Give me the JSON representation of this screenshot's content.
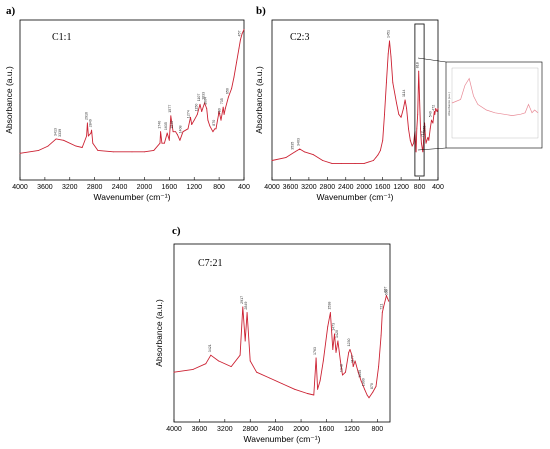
{
  "panels": [
    {
      "letter": "a)",
      "sample_label": "C1:1"
    },
    {
      "letter": "b)",
      "sample_label": "C2:3"
    },
    {
      "letter": "c)",
      "sample_label": "C7:21"
    }
  ],
  "colors": {
    "spectrum": "#cc2233",
    "inset_spectrum": "#e88a96",
    "axis": "#000000",
    "zoom_box": "#000000"
  },
  "chart_data": [
    {
      "type": "line",
      "panel": "a)",
      "title": "C1:1",
      "xlabel": "Wavenumber (cm⁻¹)",
      "ylabel": "Absorbance (a.u.)",
      "xlim": [
        4000,
        400
      ],
      "x_reversed": true,
      "ylim": [
        0,
        1
      ],
      "xticks": [
        4000,
        3600,
        3200,
        2800,
        2400,
        2000,
        1600,
        1200,
        800,
        400
      ],
      "grid": false,
      "series": [
        {
          "x": [
            4000,
            3700,
            3550,
            3420,
            3300,
            3100,
            3000,
            2930,
            2916,
            2900,
            2860,
            2849,
            2830,
            2750,
            2500,
            2200,
            2000,
            1850,
            1750,
            1740,
            1720,
            1680,
            1635,
            1620,
            1600,
            1577,
            1540,
            1500,
            1470,
            1430,
            1380,
            1300,
            1260,
            1240,
            1200,
            1150,
            1107,
            1080,
            1033,
            1000,
            980,
            950,
            900,
            870,
            850,
            800,
            770,
            735,
            720,
            700,
            650,
            600,
            560,
            520,
            480,
            457,
            430,
            400
          ],
          "y": [
            0.13,
            0.15,
            0.18,
            0.23,
            0.22,
            0.18,
            0.17,
            0.25,
            0.34,
            0.25,
            0.27,
            0.29,
            0.2,
            0.15,
            0.14,
            0.14,
            0.14,
            0.15,
            0.2,
            0.28,
            0.2,
            0.2,
            0.27,
            0.25,
            0.22,
            0.39,
            0.28,
            0.28,
            0.26,
            0.22,
            0.28,
            0.3,
            0.38,
            0.33,
            0.36,
            0.4,
            0.47,
            0.42,
            0.48,
            0.44,
            0.36,
            0.32,
            0.28,
            0.3,
            0.3,
            0.42,
            0.36,
            0.45,
            0.4,
            0.44,
            0.52,
            0.58,
            0.66,
            0.76,
            0.86,
            0.92,
            0.96,
            0.99
          ]
        }
      ],
      "peak_labels": [
        {
          "x": 3339,
          "label": "3339"
        },
        {
          "x": 3413,
          "label": "3413"
        },
        {
          "x": 2916,
          "label": "2916"
        },
        {
          "x": 2849,
          "label": "2849"
        },
        {
          "x": 1740,
          "label": "1740"
        },
        {
          "x": 1635,
          "label": "1635"
        },
        {
          "x": 1577,
          "label": "1577"
        },
        {
          "x": 1540,
          "label": "1540"
        },
        {
          "x": 1408,
          "label": "1408"
        },
        {
          "x": 1274,
          "label": "1274"
        },
        {
          "x": 1150,
          "label": "1150"
        },
        {
          "x": 1107,
          "label": "1107"
        },
        {
          "x": 1033,
          "label": "1033"
        },
        {
          "x": 1004,
          "label": "1004"
        },
        {
          "x": 870,
          "label": "870"
        },
        {
          "x": 780,
          "label": "780"
        },
        {
          "x": 735,
          "label": "735"
        },
        {
          "x": 650,
          "label": "650"
        },
        {
          "x": 457,
          "label": "457"
        }
      ]
    },
    {
      "type": "line",
      "panel": "b)",
      "title": "C2:3",
      "xlabel": "Wavenumber (cm⁻¹)",
      "ylabel": "Absorbance (a.u.)",
      "xlim": [
        4000,
        400
      ],
      "x_reversed": true,
      "ylim": [
        0,
        1
      ],
      "xticks": [
        4000,
        3600,
        3200,
        2800,
        2400,
        2000,
        1600,
        1200,
        800,
        400
      ],
      "grid": false,
      "series": [
        {
          "x": [
            4000,
            3700,
            3500,
            3400,
            3300,
            3100,
            2900,
            2700,
            2500,
            2200,
            2000,
            1900,
            1800,
            1750,
            1700,
            1650,
            1600,
            1560,
            1520,
            1480,
            1451,
            1420,
            1380,
            1300,
            1250,
            1200,
            1150,
            1114,
            1080,
            1040,
            1000,
            960,
            930,
            900,
            875,
            860,
            840,
            818,
            800,
            780,
            760,
            730,
            712,
            700,
            690,
            676,
            660,
            640,
            620,
            600,
            570,
            540,
            510,
            480,
            470,
            450,
            420,
            400
          ],
          "y": [
            0.08,
            0.1,
            0.14,
            0.16,
            0.14,
            0.12,
            0.08,
            0.06,
            0.06,
            0.06,
            0.06,
            0.07,
            0.08,
            0.1,
            0.12,
            0.15,
            0.22,
            0.4,
            0.62,
            0.82,
            0.91,
            0.8,
            0.62,
            0.48,
            0.4,
            0.38,
            0.44,
            0.5,
            0.44,
            0.3,
            0.22,
            0.18,
            0.2,
            0.28,
            0.14,
            0.3,
            0.4,
            0.7,
            0.5,
            0.3,
            0.2,
            0.14,
            0.22,
            0.3,
            0.34,
            0.26,
            0.2,
            0.22,
            0.24,
            0.22,
            0.3,
            0.36,
            0.34,
            0.42,
            0.4,
            0.44,
            0.42,
            0.44
          ]
        }
      ],
      "peak_labels": [
        {
          "x": 3535,
          "label": "3535"
        },
        {
          "x": 3403,
          "label": "3403"
        },
        {
          "x": 1451,
          "label": "1451"
        },
        {
          "x": 1114,
          "label": "1114"
        },
        {
          "x": 818,
          "label": "818"
        },
        {
          "x": 712,
          "label": "712"
        },
        {
          "x": 676,
          "label": "676"
        },
        {
          "x": 540,
          "label": "540"
        },
        {
          "x": 472,
          "label": "472"
        }
      ],
      "inset": {
        "zoom_region_x": [
          900,
          700
        ],
        "series": [
          {
            "x": [
              900,
              880,
              870,
              860,
              850,
              840,
              820,
              800,
              780,
              760,
              740,
              730,
              722,
              714,
              708,
              700
            ],
            "y": [
              0.5,
              0.55,
              0.75,
              0.85,
              0.6,
              0.48,
              0.4,
              0.36,
              0.34,
              0.32,
              0.34,
              0.36,
              0.48,
              0.36,
              0.4,
              0.36
            ]
          }
        ]
      }
    },
    {
      "type": "line",
      "panel": "c)",
      "title": "C7:21",
      "xlabel": "Wavenumber (cm⁻¹)",
      "ylabel": "Absorbance (a.u.)",
      "xlim": [
        4000,
        600
      ],
      "x_reversed": true,
      "ylim": [
        0,
        1
      ],
      "xticks": [
        4000,
        3600,
        3200,
        2800,
        2400,
        2000,
        1600,
        1200,
        800
      ],
      "grid": false,
      "series": [
        {
          "x": [
            4000,
            3700,
            3500,
            3421,
            3300,
            3100,
            2960,
            2917,
            2880,
            2849,
            2800,
            2700,
            2500,
            2300,
            2100,
            1900,
            1800,
            1763,
            1740,
            1700,
            1650,
            1580,
            1538,
            1500,
            1473,
            1450,
            1420,
            1380,
            1348,
            1300,
            1250,
            1230,
            1200,
            1180,
            1150,
            1100,
            1055,
            1000,
            960,
            930,
            870,
            820,
            780,
            740,
            721,
            700,
            657,
            638,
            620
          ],
          "y": [
            0.28,
            0.3,
            0.34,
            0.4,
            0.36,
            0.32,
            0.4,
            0.74,
            0.5,
            0.7,
            0.36,
            0.28,
            0.24,
            0.2,
            0.16,
            0.13,
            0.12,
            0.38,
            0.16,
            0.22,
            0.36,
            0.6,
            0.7,
            0.44,
            0.55,
            0.42,
            0.5,
            0.36,
            0.26,
            0.28,
            0.42,
            0.44,
            0.4,
            0.32,
            0.36,
            0.28,
            0.22,
            0.16,
            0.12,
            0.1,
            0.14,
            0.18,
            0.32,
            0.54,
            0.7,
            0.74,
            0.82,
            0.8,
            0.78
          ]
        }
      ],
      "peak_labels": [
        {
          "x": 3421,
          "label": "3421"
        },
        {
          "x": 2917,
          "label": "2917"
        },
        {
          "x": 2849,
          "label": "2849"
        },
        {
          "x": 1763,
          "label": "1763"
        },
        {
          "x": 1538,
          "label": "1538"
        },
        {
          "x": 1473,
          "label": "1473"
        },
        {
          "x": 1420,
          "label": "1420"
        },
        {
          "x": 1348,
          "label": "1348"
        },
        {
          "x": 1230,
          "label": "1230"
        },
        {
          "x": 1177,
          "label": "1177"
        },
        {
          "x": 1055,
          "label": "1055"
        },
        {
          "x": 1000,
          "label": "1000"
        },
        {
          "x": 870,
          "label": "870"
        },
        {
          "x": 721,
          "label": "721"
        },
        {
          "x": 657,
          "label": "657"
        },
        {
          "x": 638,
          "label": "638"
        }
      ]
    }
  ]
}
